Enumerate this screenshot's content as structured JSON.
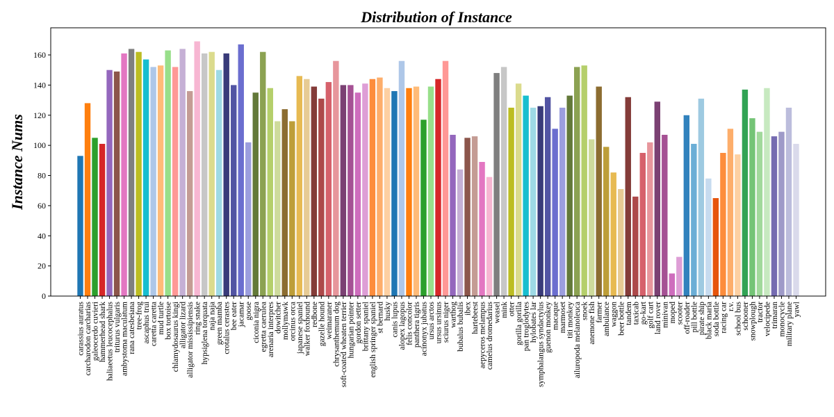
{
  "chart_data": {
    "type": "bar",
    "title": "Distribution of Instance",
    "y_label": "Instance Nums",
    "categories": [
      "carassius auratus",
      "carcharodon carcharias",
      "galeocerdo cuvieri",
      "hammerhead shark",
      "haliaeetus leucocephalus",
      "triturus vulgaris",
      "ambystoma maculatum",
      "rana catesbeiana",
      "tree-frog",
      "ascaphus trui",
      "caretta caretta",
      "mud turtle",
      "box tortoise",
      "chlamydosaurus kingi",
      "alligator lizard",
      "alligator mississipiensis",
      "ring snake",
      "hypsiglena torquata",
      "naja naja",
      "green mamba",
      "crotalus cerastes",
      "bee eater",
      "jacamar",
      "goose",
      "ciconia nigra",
      "egretta caerulea",
      "arenaria interpres",
      "dowitcher",
      "mollymawk",
      "orcinus orca",
      "japanese spaniel",
      "walker foxhound",
      "redbone",
      "gazelle hound",
      "weimaraner",
      "chrysanthemum dog",
      "soft-coated wheaten terrier",
      "hungarian pointer",
      "gordon setter",
      "brittany spaniel",
      "english springer spaniel",
      "st bernard",
      "husky",
      "canis lupus",
      "alopex lagopus",
      "felis concolor",
      "panthera tigris",
      "acinonyx jubatus",
      "ursus arctos",
      "ursus ursinus",
      "sciurus niger",
      "warthog",
      "bubalus bubalis",
      "ibex",
      "hartebeest",
      "aepyceros melampus",
      "camelus dromedarius",
      "weasel",
      "mink",
      "otter",
      "gorilla gorilla",
      "pan troglodytes",
      "hylobates lar",
      "symphalangus syndactylus",
      "guenon monkey",
      "macaque",
      "marmoset",
      "titi monkey",
      "ailuropoda melanoleuca",
      "snoek",
      "anemone fish",
      "farmer",
      "ambulance",
      "waggon",
      "beer bottle",
      "tandem",
      "taxicab",
      "go-kart",
      "golf cart",
      "land rover",
      "minivan",
      "moped",
      "scooter",
      "off-roader",
      "pill bottle",
      "pirate ship",
      "black maria",
      "soda bottle",
      "racing car",
      "r.v.",
      "school bus",
      "schooner",
      "snowplough",
      "tractor",
      "velocipede",
      "trimaran",
      "monocycle",
      "military plane",
      "yawl"
    ],
    "values": [
      93,
      128,
      105,
      101,
      150,
      149,
      161,
      164,
      162,
      157,
      152,
      153,
      163,
      152,
      164,
      136,
      169,
      161,
      162,
      150,
      161,
      140,
      167,
      102,
      135,
      162,
      138,
      116,
      124,
      116,
      146,
      144,
      139,
      131,
      142,
      156,
      140,
      140,
      135,
      141,
      144,
      145,
      138,
      136,
      156,
      138,
      139,
      117,
      139,
      144,
      156,
      107,
      84,
      105,
      106,
      89,
      79,
      148,
      152,
      125,
      141,
      133,
      125,
      126,
      132,
      111,
      125,
      133,
      152,
      153,
      104,
      139,
      99,
      82,
      71,
      132,
      66,
      95,
      102,
      129,
      107,
      15,
      26,
      120,
      101,
      131,
      78,
      65,
      95,
      111,
      94,
      137,
      118,
      109,
      138,
      106,
      109,
      125,
      101
    ],
    "colors": [
      "#1f77b4",
      "#ff7f0e",
      "#2ca02c",
      "#d62728",
      "#9467bd",
      "#8c564b",
      "#e377c2",
      "#7f7f7f",
      "#bcbd22",
      "#17becf",
      "#aec7e8",
      "#ffbb78",
      "#98df8a",
      "#ff9896",
      "#c5b0d5",
      "#c49c94",
      "#f7b6d2",
      "#c7c7c7",
      "#dbdb8d",
      "#9edae5",
      "#393b79",
      "#5254a3",
      "#6b6ecf",
      "#9c9ede",
      "#637939",
      "#8ca252",
      "#b5cf6b",
      "#cedb9c",
      "#8c6d31",
      "#bd9e39",
      "#e7ba52",
      "#e7cb94",
      "#843c39",
      "#ad494a",
      "#d6616b",
      "#e7969c",
      "#7b4173",
      "#a55194",
      "#ce6dbd",
      "#de9ed6",
      "#fd8d3c",
      "#fdae6b",
      "#fdd0a2",
      "#1f77b4",
      "#aec7e8",
      "#ff7f0e",
      "#ffbb78",
      "#2ca02c",
      "#98df8a",
      "#d62728",
      "#ff9896",
      "#9467bd",
      "#c5b0d5",
      "#8c564b",
      "#c49c94",
      "#e377c2",
      "#f7b6d2",
      "#7f7f7f",
      "#c7c7c7",
      "#bcbd22",
      "#dbdb8d",
      "#17becf",
      "#9edae5",
      "#393b79",
      "#5254a3",
      "#6b6ecf",
      "#9c9ede",
      "#637939",
      "#8ca252",
      "#b5cf6b",
      "#cedb9c",
      "#8c6d31",
      "#bd9e39",
      "#e7ba52",
      "#e7cb94",
      "#843c39",
      "#ad494a",
      "#d6616b",
      "#e7969c",
      "#7b4173",
      "#a55194",
      "#ce6dbd",
      "#de9ed6",
      "#3182bd",
      "#6baed6",
      "#9ecae1",
      "#c6dbef",
      "#e6550d",
      "#fd8d3c",
      "#fdae6b",
      "#fdd0a2",
      "#31a354",
      "#74c476",
      "#a1d99b",
      "#c7e9c0",
      "#756bb1",
      "#9e9ac8",
      "#bcbddc",
      "#dadaeb"
    ],
    "ylim": [
      0,
      178
    ],
    "yticks": [
      0,
      20,
      40,
      60,
      80,
      100,
      120,
      140,
      160
    ]
  }
}
